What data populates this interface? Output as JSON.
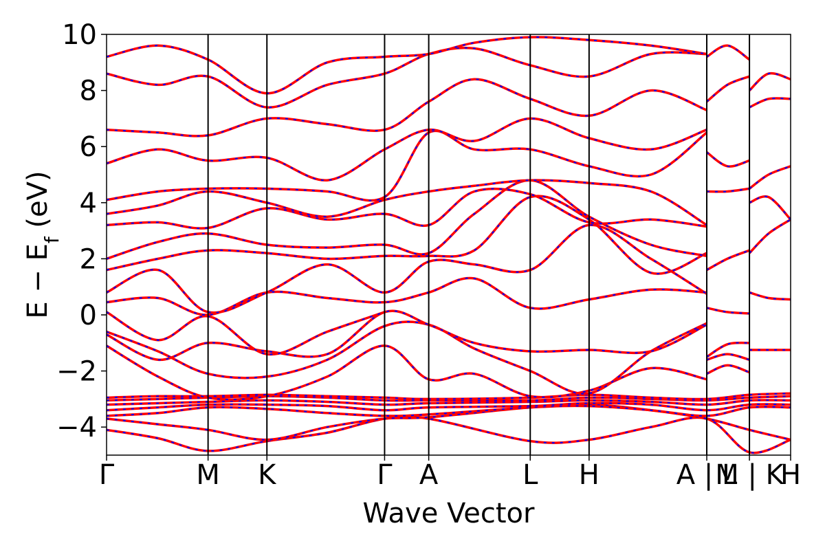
{
  "chart_data": {
    "type": "line",
    "xlabel": "Wave Vector",
    "ylabel": "E − E",
    "ylabel_subscript": "f",
    "ylabel_unit": " (eV)",
    "ylim": [
      -5,
      10
    ],
    "yticks": [
      -4,
      -2,
      0,
      2,
      4,
      6,
      8,
      10
    ],
    "ytick_labels": [
      "−4",
      "−2",
      "0",
      "2",
      "4",
      "6",
      "8",
      "10"
    ],
    "xlim": [
      0,
      4.65
    ],
    "kpoints": [
      {
        "label": "Γ",
        "x": 0.0
      },
      {
        "label": "M",
        "x": 0.69
      },
      {
        "label": "K",
        "x": 1.09
      },
      {
        "label": "Γ",
        "x": 1.89
      },
      {
        "label": "A",
        "x": 2.19
      },
      {
        "label": "L",
        "x": 2.88
      },
      {
        "label": "H",
        "x": 3.28
      },
      {
        "label": "A | L",
        "x": 4.08
      },
      {
        "label": "M | K",
        "x": 4.37
      },
      {
        "label": "H",
        "x": 4.65
      }
    ],
    "grid": false,
    "legend": "none",
    "colors": {
      "band": "#ff0000",
      "band_dash": "#0000ff"
    },
    "series": [
      {
        "x": [
          0,
          0.35,
          0.69,
          1.09,
          1.5,
          1.89,
          2.19,
          2.88,
          3.28,
          3.7,
          4.08,
          4.37,
          4.65
        ],
        "values": [
          -4.1,
          -4.4,
          -4.85,
          -4.5,
          -4.2,
          -3.7,
          -3.7,
          -4.5,
          -4.45,
          -4.0,
          -3.7,
          -4.9,
          -4.45
        ]
      },
      {
        "x": [
          0,
          0.35,
          0.69,
          1.09,
          1.5,
          1.89,
          2.19,
          2.88,
          3.28,
          3.7,
          4.08,
          4.37,
          4.65
        ],
        "values": [
          -3.7,
          -3.9,
          -4.1,
          -4.45,
          -4.0,
          -3.7,
          -3.65,
          -3.3,
          -3.2,
          -3.4,
          -3.7,
          -4.1,
          -4.45
        ]
      },
      {
        "x": [
          0,
          0.35,
          0.69,
          1.09,
          1.5,
          1.89,
          2.19,
          2.88,
          3.28,
          3.7,
          4.08,
          4.37,
          4.65
        ],
        "values": [
          -3.6,
          -3.5,
          -3.3,
          -3.35,
          -3.5,
          -3.6,
          -3.55,
          -3.3,
          -3.25,
          -3.4,
          -3.6,
          -3.3,
          -3.3
        ]
      },
      {
        "x": [
          0,
          0.35,
          0.69,
          1.09,
          1.5,
          1.89,
          2.19,
          2.88,
          3.28,
          3.7,
          4.08,
          4.37,
          4.65
        ],
        "values": [
          -3.4,
          -3.3,
          -3.2,
          -3.2,
          -3.25,
          -3.4,
          -3.3,
          -3.25,
          -3.15,
          -3.2,
          -3.4,
          -3.2,
          -3.2
        ]
      },
      {
        "x": [
          0,
          0.35,
          0.69,
          1.09,
          1.5,
          1.89,
          2.19,
          2.88,
          3.28,
          3.7,
          4.08,
          4.37,
          4.65
        ],
        "values": [
          -3.2,
          -3.15,
          -3.1,
          -3.05,
          -3.1,
          -3.2,
          -3.15,
          -3.1,
          -3.05,
          -3.1,
          -3.2,
          -3.05,
          -3.05
        ]
      },
      {
        "x": [
          0,
          0.35,
          0.69,
          1.09,
          1.5,
          1.89,
          2.19,
          2.88,
          3.28,
          3.7,
          4.08,
          4.37,
          4.65
        ],
        "values": [
          -3.05,
          -3.0,
          -2.95,
          -2.9,
          -2.95,
          -3.05,
          -3.05,
          -3.05,
          -2.95,
          -3.0,
          -3.05,
          -2.95,
          -2.9
        ]
      },
      {
        "x": [
          0,
          0.35,
          0.69,
          1.09,
          1.5,
          1.89,
          2.19,
          2.88,
          3.28,
          3.7,
          4.08,
          4.37,
          4.65
        ],
        "values": [
          -2.95,
          -2.9,
          -2.9,
          -2.85,
          -2.9,
          -2.95,
          -3.0,
          -2.95,
          -2.85,
          -2.95,
          -3.0,
          -2.85,
          -2.8
        ]
      },
      {
        "x": [
          0,
          0.35,
          0.69,
          1.09,
          1.5,
          1.89,
          2.19,
          2.5,
          2.88,
          3.28,
          3.7,
          4.08
        ],
        "values": [
          -1.1,
          -2.2,
          -2.95,
          -2.9,
          -2.2,
          -1.1,
          -2.3,
          -2.1,
          -2.9,
          -2.7,
          -1.9,
          -2.3
        ]
      },
      {
        "x": [
          0,
          0.35,
          0.69,
          1.09,
          1.5,
          1.89,
          2.19,
          2.5,
          2.88,
          3.28,
          3.7,
          4.08
        ],
        "values": [
          -0.6,
          -1.3,
          -2.1,
          -2.2,
          -1.6,
          -0.4,
          -0.35,
          -1.2,
          -2.0,
          -2.8,
          -1.3,
          -0.3
        ]
      },
      {
        "x": [
          0,
          0.35,
          0.69,
          1.09,
          1.5,
          1.89,
          2.19,
          2.5,
          2.88,
          3.28,
          3.7,
          4.08
        ],
        "values": [
          -0.7,
          -1.6,
          -1.0,
          -1.3,
          -1.4,
          0.1,
          -0.35,
          -1.0,
          -1.3,
          -1.25,
          -1.3,
          -0.35
        ]
      },
      {
        "x": [
          0,
          0.35,
          0.69,
          1.09,
          1.5,
          1.89
        ],
        "values": [
          0.1,
          -0.9,
          -0.05,
          -1.4,
          -0.6,
          0.1
        ]
      },
      {
        "x": [
          0,
          0.35,
          0.69,
          1.09,
          1.5,
          1.89,
          2.19,
          2.5,
          2.88,
          3.28,
          3.7,
          4.08
        ],
        "values": [
          0.45,
          0.6,
          0.0,
          0.8,
          0.6,
          0.45,
          0.8,
          1.3,
          0.25,
          0.55,
          0.9,
          0.8
        ]
      },
      {
        "x": [
          0,
          0.35,
          0.69,
          1.09,
          1.5,
          1.89,
          2.19,
          2.5,
          2.88,
          3.28,
          3.7,
          4.08
        ],
        "values": [
          0.8,
          1.6,
          0.1,
          0.8,
          1.8,
          0.8,
          1.9,
          1.8,
          1.6,
          3.2,
          2.0,
          0.75
        ]
      },
      {
        "x": [
          0,
          0.35,
          0.69,
          1.09,
          1.5,
          1.89,
          2.19,
          2.5,
          2.88,
          3.28,
          3.7,
          4.08
        ],
        "values": [
          1.6,
          2.0,
          2.3,
          2.2,
          2.0,
          2.1,
          2.1,
          2.3,
          4.2,
          3.4,
          1.5,
          2.2
        ]
      },
      {
        "x": [
          0,
          0.35,
          0.69,
          1.09,
          1.5,
          1.89,
          2.19,
          2.5,
          2.88,
          3.28,
          3.7,
          4.08
        ],
        "values": [
          2.0,
          2.6,
          2.9,
          2.5,
          2.4,
          2.5,
          2.2,
          3.6,
          4.8,
          3.5,
          2.5,
          2.1
        ]
      },
      {
        "x": [
          0,
          0.35,
          0.69,
          1.09,
          1.5,
          1.89,
          2.19,
          2.5,
          2.88,
          3.28,
          3.7,
          4.08
        ],
        "values": [
          3.2,
          3.3,
          3.1,
          3.8,
          3.4,
          3.6,
          3.2,
          4.4,
          4.3,
          3.3,
          3.4,
          3.15
        ]
      },
      {
        "x": [
          0,
          0.35,
          0.69,
          1.09,
          1.5,
          1.89,
          2.19,
          2.5,
          2.88,
          3.28,
          3.7,
          4.08
        ],
        "values": [
          3.6,
          3.9,
          4.4,
          4.0,
          3.5,
          4.1,
          4.4,
          4.6,
          4.8,
          4.7,
          4.4,
          3.2
        ]
      },
      {
        "x": [
          0,
          0.35,
          0.69,
          1.09,
          1.5,
          1.89,
          2.19,
          2.5,
          2.88,
          3.28,
          3.7,
          4.08
        ],
        "values": [
          4.1,
          4.4,
          4.5,
          4.5,
          4.4,
          4.2,
          6.5,
          5.9,
          5.9,
          5.3,
          5.0,
          6.5
        ]
      },
      {
        "x": [
          0,
          0.35,
          0.69,
          1.09,
          1.5,
          1.89,
          2.19,
          2.5,
          2.88,
          3.28,
          3.7,
          4.08
        ],
        "values": [
          5.4,
          5.9,
          5.5,
          5.6,
          4.8,
          5.9,
          6.6,
          6.2,
          7.0,
          6.3,
          5.9,
          6.6
        ]
      },
      {
        "x": [
          0,
          0.35,
          0.69,
          1.09,
          1.5,
          1.89,
          2.19,
          2.5,
          2.88,
          3.28,
          3.7,
          4.08
        ],
        "values": [
          6.6,
          6.5,
          6.4,
          7.0,
          6.8,
          6.6,
          7.6,
          8.4,
          7.7,
          7.1,
          8.0,
          7.3
        ]
      },
      {
        "x": [
          0,
          0.35,
          0.69,
          1.09,
          1.5,
          1.89,
          2.19,
          2.5,
          2.88,
          3.28,
          3.7,
          4.08
        ],
        "values": [
          8.6,
          8.2,
          8.5,
          7.4,
          8.2,
          8.6,
          9.3,
          9.5,
          8.9,
          8.5,
          9.3,
          9.3
        ]
      },
      {
        "x": [
          0,
          0.35,
          0.69,
          1.09,
          1.5,
          1.89,
          2.19,
          2.5,
          2.88,
          3.28,
          3.7,
          4.08
        ],
        "values": [
          9.2,
          9.6,
          9.1,
          7.9,
          9.0,
          9.2,
          9.3,
          9.7,
          9.9,
          9.8,
          9.6,
          9.3
        ]
      },
      {
        "x": [
          4.08,
          4.22,
          4.37
        ],
        "values": [
          0.25,
          0.1,
          0.05
        ]
      },
      {
        "x": [
          4.08,
          4.22,
          4.37
        ],
        "values": [
          -1.5,
          -1.05,
          -1.0
        ]
      },
      {
        "x": [
          4.08,
          4.22,
          4.37
        ],
        "values": [
          -1.6,
          -1.4,
          -1.6
        ]
      },
      {
        "x": [
          4.08,
          4.22,
          4.37
        ],
        "values": [
          -2.1,
          -1.8,
          -2.05
        ]
      },
      {
        "x": [
          4.08,
          4.22,
          4.37
        ],
        "values": [
          1.6,
          2.0,
          2.3
        ]
      },
      {
        "x": [
          4.08,
          4.22,
          4.37
        ],
        "values": [
          4.4,
          4.4,
          4.5
        ]
      },
      {
        "x": [
          4.08,
          4.22,
          4.37
        ],
        "values": [
          5.8,
          5.3,
          5.5
        ]
      },
      {
        "x": [
          4.08,
          4.22,
          4.37
        ],
        "values": [
          7.6,
          8.2,
          8.5
        ]
      },
      {
        "x": [
          4.08,
          4.22,
          4.37
        ],
        "values": [
          9.2,
          9.6,
          9.1
        ]
      },
      {
        "x": [
          4.37,
          4.5,
          4.65
        ],
        "values": [
          0.8,
          0.6,
          0.55
        ]
      },
      {
        "x": [
          4.37,
          4.5,
          4.65
        ],
        "values": [
          -1.25,
          -1.25,
          -1.25
        ]
      },
      {
        "x": [
          4.37,
          4.5,
          4.65
        ],
        "values": [
          2.2,
          2.9,
          3.4
        ]
      },
      {
        "x": [
          4.37,
          4.5,
          4.65
        ],
        "values": [
          4.0,
          4.2,
          3.4
        ]
      },
      {
        "x": [
          4.37,
          4.5,
          4.65
        ],
        "values": [
          4.5,
          5.0,
          5.3
        ]
      },
      {
        "x": [
          4.37,
          4.5,
          4.65
        ],
        "values": [
          7.4,
          7.7,
          7.7
        ]
      },
      {
        "x": [
          4.37,
          4.5,
          4.65
        ],
        "values": [
          8.0,
          8.6,
          8.4
        ]
      }
    ]
  }
}
